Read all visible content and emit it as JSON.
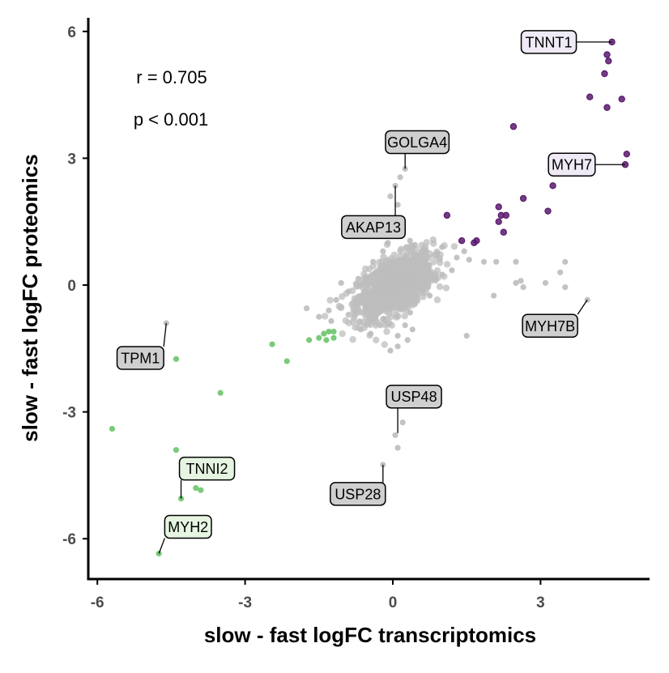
{
  "chart_data": {
    "type": "scatter",
    "xlabel": "slow - fast logFC transcriptomics",
    "ylabel": "slow - fast logFC proteomics",
    "xlim": [
      -6.2,
      5.3
    ],
    "ylim": [
      -7.0,
      6.3
    ],
    "x_ticks": [
      -6,
      -3,
      0,
      3
    ],
    "y_ticks": [
      -6,
      -3,
      0,
      3,
      6
    ],
    "x_tick_labels": [
      "-6",
      "-3",
      "0",
      "3"
    ],
    "y_tick_labels": [
      "-6",
      "-3",
      "0",
      "3",
      "6"
    ],
    "grid": false,
    "annotations": {
      "r_text": "r = 0.705",
      "p_text": "p < 0.001"
    },
    "colors": {
      "up": "#5b1a6e",
      "down": "#6cc46a",
      "neutral": "#bdbdbd"
    },
    "series": [
      {
        "key": "up",
        "points": [
          [
            4.45,
            5.75
          ],
          [
            4.35,
            5.45
          ],
          [
            4.38,
            5.3
          ],
          [
            4.3,
            5.0
          ],
          [
            4.0,
            4.45
          ],
          [
            4.35,
            4.2
          ],
          [
            4.65,
            4.4
          ],
          [
            2.45,
            3.75
          ],
          [
            4.75,
            3.1
          ],
          [
            4.72,
            2.85
          ],
          [
            3.25,
            2.35
          ],
          [
            2.65,
            2.05
          ],
          [
            2.15,
            1.85
          ],
          [
            3.15,
            1.75
          ],
          [
            2.2,
            1.65
          ],
          [
            2.3,
            1.65
          ],
          [
            2.15,
            1.5
          ],
          [
            2.25,
            1.25
          ],
          [
            1.1,
            1.65
          ],
          [
            1.4,
            1.05
          ],
          [
            1.7,
            1.05
          ],
          [
            1.65,
            1.0
          ]
        ]
      },
      {
        "key": "down",
        "points": [
          [
            -4.75,
            -6.35
          ],
          [
            -4.3,
            -5.05
          ],
          [
            -4.0,
            -4.8
          ],
          [
            -3.9,
            -4.85
          ],
          [
            -4.4,
            -3.9
          ],
          [
            -5.7,
            -3.4
          ],
          [
            -3.5,
            -2.55
          ],
          [
            -2.15,
            -1.8
          ],
          [
            -2.45,
            -1.4
          ],
          [
            -4.4,
            -1.75
          ],
          [
            -1.7,
            -1.3
          ],
          [
            -1.5,
            -1.25
          ],
          [
            -1.35,
            -1.3
          ],
          [
            -1.2,
            -1.25
          ],
          [
            -1.4,
            -1.15
          ],
          [
            -1.3,
            -1.1
          ],
          [
            -1.2,
            -1.1
          ]
        ]
      },
      {
        "key": "neutral",
        "points": [
          [
            0.15,
            2.55
          ],
          [
            0.25,
            2.75
          ],
          [
            0.05,
            2.35
          ],
          [
            -0.05,
            2.1
          ],
          [
            0.1,
            1.9
          ],
          [
            0.05,
            1.4
          ],
          [
            0.1,
            1.3
          ],
          [
            -0.1,
            1.0
          ],
          [
            0.35,
            1.05
          ],
          [
            0.45,
            0.95
          ],
          [
            0.65,
            0.85
          ],
          [
            0.9,
            0.75
          ],
          [
            1.0,
            0.9
          ],
          [
            1.3,
            0.65
          ],
          [
            1.45,
            0.8
          ],
          [
            1.55,
            0.6
          ],
          [
            1.85,
            0.55
          ],
          [
            2.1,
            0.55
          ],
          [
            1.2,
            0.35
          ],
          [
            1.0,
            0.25
          ],
          [
            0.85,
            0.15
          ],
          [
            0.7,
            0.45
          ],
          [
            0.55,
            0.55
          ],
          [
            0.6,
            -0.1
          ],
          [
            0.75,
            -0.25
          ],
          [
            0.45,
            -0.45
          ],
          [
            0.35,
            -0.65
          ],
          [
            0.25,
            -0.95
          ],
          [
            0.4,
            -1.05
          ],
          [
            0.1,
            -1.2
          ],
          [
            -0.05,
            -1.55
          ],
          [
            0.1,
            -1.45
          ],
          [
            0.3,
            -1.3
          ],
          [
            -0.35,
            -0.75
          ],
          [
            -0.55,
            -0.55
          ],
          [
            -0.75,
            -0.35
          ],
          [
            -0.9,
            -0.15
          ],
          [
            -1.05,
            0.05
          ],
          [
            -1.15,
            -0.35
          ],
          [
            -1.3,
            -0.6
          ],
          [
            -1.5,
            -0.75
          ],
          [
            -1.75,
            -0.55
          ],
          [
            -1.25,
            -0.85
          ],
          [
            -0.9,
            -0.7
          ],
          [
            -0.65,
            -1.05
          ],
          [
            -0.45,
            -1.15
          ],
          [
            -0.25,
            -0.95
          ],
          [
            -0.4,
            0.55
          ],
          [
            -0.2,
            0.8
          ],
          [
            -0.35,
            0.3
          ],
          [
            -0.55,
            0.2
          ],
          [
            -0.7,
            0.15
          ],
          [
            0.2,
            0.6
          ],
          [
            -0.1,
            0.45
          ],
          [
            2.5,
            0.55
          ],
          [
            1.5,
            -1.2
          ],
          [
            2.6,
            0.1
          ],
          [
            2.65,
            -0.05
          ],
          [
            3.1,
            0.05
          ],
          [
            3.5,
            -0.05
          ],
          [
            3.4,
            0.3
          ],
          [
            2.05,
            -0.25
          ],
          [
            -4.6,
            -0.9
          ],
          [
            3.95,
            -0.35
          ],
          [
            3.5,
            0.55
          ],
          [
            2.5,
            0.05
          ],
          [
            0.2,
            -3.25
          ],
          [
            0.05,
            -3.55
          ],
          [
            0.1,
            -3.85
          ],
          [
            -0.2,
            -4.25
          ],
          [
            0.15,
            -0.55
          ],
          [
            -0.15,
            0.05
          ]
        ]
      }
    ],
    "gene_labels": [
      {
        "text": "TNNT1",
        "x": 4.45,
        "y": 5.75,
        "dir": "left",
        "fill": "#efeaf6"
      },
      {
        "text": "MYH7",
        "x": 4.72,
        "y": 2.85,
        "dir": "left",
        "fill": "#efeaf6"
      },
      {
        "text": "GOLGA4",
        "x": 0.25,
        "y": 2.75,
        "dir": "up",
        "fill": "#cfcfcf"
      },
      {
        "text": "AKAP13",
        "x": 0.05,
        "y": 2.35,
        "dir": "down-left",
        "fill": "#cfcfcf"
      },
      {
        "text": "MYH7B",
        "x": 3.95,
        "y": -0.35,
        "dir": "down",
        "fill": "#cfcfcf"
      },
      {
        "text": "TPM1",
        "x": -4.6,
        "y": -0.9,
        "dir": "down-left",
        "fill": "#cfcfcf"
      },
      {
        "text": "USP48",
        "x": 0.1,
        "y": -3.5,
        "dir": "up",
        "fill": "#cfcfcf"
      },
      {
        "text": "USP28",
        "x": -0.2,
        "y": -4.25,
        "dir": "down-left",
        "fill": "#cfcfcf"
      },
      {
        "text": "TNNI2",
        "x": -4.3,
        "y": -5.05,
        "dir": "up",
        "fill": "#e6f5e2"
      },
      {
        "text": "MYH2",
        "x": -4.75,
        "y": -6.35,
        "dir": "up-right",
        "fill": "#e6f5e2"
      }
    ]
  }
}
